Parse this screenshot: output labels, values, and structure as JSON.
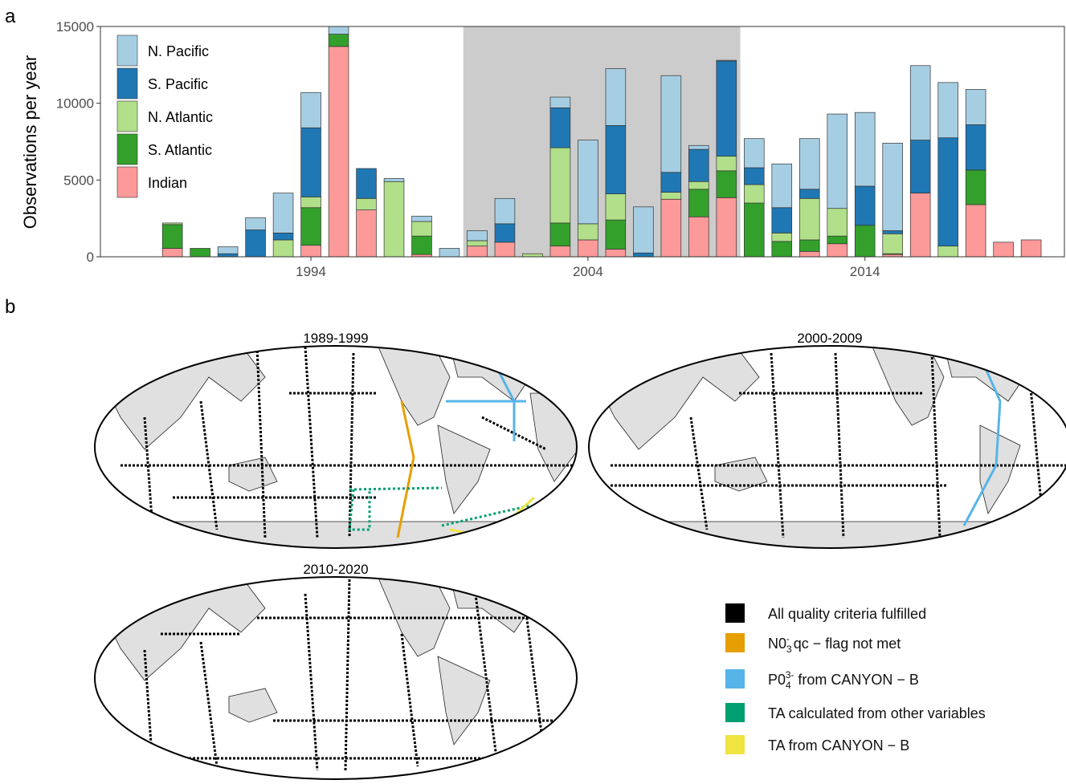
{
  "chart_data": [
    {
      "type": "bar",
      "panel_label": "a",
      "ylabel": "Observations per year",
      "ylim": [
        0,
        15000
      ],
      "yticks": [
        0,
        5000,
        10000,
        15000
      ],
      "xticks": [
        1994,
        2004,
        2014
      ],
      "highlight_span": [
        2000,
        2009
      ],
      "legend_position": "top-left",
      "x": [
        1989,
        1990,
        1991,
        1992,
        1993,
        1994,
        1995,
        1996,
        1997,
        1998,
        1999,
        2000,
        2001,
        2002,
        2003,
        2004,
        2005,
        2006,
        2007,
        2008,
        2009,
        2010,
        2011,
        2012,
        2013,
        2014,
        2015,
        2016,
        2017,
        2018,
        2019,
        2020
      ],
      "series": [
        {
          "name": "Indian",
          "color": "#fb9a99",
          "values": [
            550,
            0,
            0,
            0,
            0,
            750,
            13700,
            3050,
            0,
            150,
            0,
            700,
            950,
            0,
            700,
            1100,
            500,
            0,
            3750,
            2600,
            3850,
            0,
            0,
            350,
            850,
            0,
            150,
            4150,
            0,
            3400,
            950,
            1100
          ]
        },
        {
          "name": "S. Atlantic",
          "color": "#33a02c",
          "values": [
            1550,
            550,
            0,
            0,
            0,
            2450,
            800,
            0,
            0,
            1200,
            0,
            0,
            0,
            0,
            1500,
            0,
            1900,
            0,
            0,
            1800,
            1750,
            3500,
            1000,
            750,
            500,
            2050,
            50,
            0,
            0,
            2250,
            0,
            0
          ]
        },
        {
          "name": "N. Atlantic",
          "color": "#b2df8a",
          "values": [
            100,
            0,
            0,
            0,
            1100,
            700,
            0,
            750,
            4900,
            950,
            0,
            350,
            0,
            200,
            4900,
            1050,
            1700,
            0,
            450,
            500,
            950,
            1200,
            550,
            2700,
            1800,
            0,
            1300,
            0,
            700,
            0,
            0,
            0
          ]
        },
        {
          "name": "S. Pacific",
          "color": "#1f78b4",
          "values": [
            0,
            0,
            200,
            1750,
            450,
            4500,
            0,
            1950,
            0,
            0,
            0,
            0,
            1200,
            0,
            2600,
            0,
            4450,
            250,
            1300,
            2100,
            6200,
            1100,
            1650,
            600,
            0,
            2550,
            200,
            3450,
            7050,
            2950,
            0,
            0
          ]
        },
        {
          "name": "N. Pacific",
          "color": "#a6cee3",
          "values": [
            0,
            0,
            450,
            800,
            2600,
            2300,
            500,
            0,
            200,
            350,
            550,
            650,
            1650,
            0,
            700,
            5450,
            3700,
            3000,
            6300,
            250,
            50,
            1900,
            2850,
            3300,
            6150,
            4800,
            5700,
            4850,
            3600,
            2300,
            0,
            0
          ]
        }
      ]
    }
  ],
  "panel_b": {
    "panel_label": "b",
    "maps": [
      {
        "title": "1989-1999"
      },
      {
        "title": "2000-2009"
      },
      {
        "title": "2010-2020"
      }
    ],
    "legend": [
      {
        "label": "All quality criteria fulfilled",
        "color": "#000000"
      },
      {
        "label_main": "N0",
        "label_sub": "3",
        "label_sup": "-",
        "label_rest": " qc − flag not met",
        "color": "#e69f00"
      },
      {
        "label_main": "P0",
        "label_sub": "4",
        "label_sup": "3-",
        "label_rest": " from CANYON − B",
        "color": "#56b4e9"
      },
      {
        "label": "TA calculated from other variables",
        "color": "#009e73"
      },
      {
        "label": "TA from CANYON − B",
        "color": "#f0e442"
      }
    ]
  }
}
